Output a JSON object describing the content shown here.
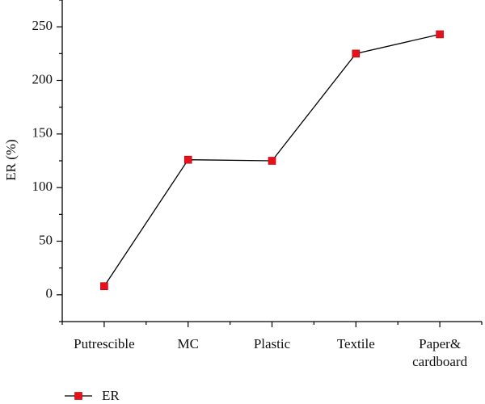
{
  "chart_data": {
    "type": "line",
    "ylabel": "ER (%)",
    "xlabel": "",
    "categories": [
      [
        "Putrescible"
      ],
      [
        "MC"
      ],
      [
        "Plastic"
      ],
      [
        "Textile"
      ],
      [
        "Paper&",
        "cardboard"
      ]
    ],
    "series": [
      {
        "name": "ER",
        "color": "#e8101a",
        "line_color": "#000000",
        "marker": "square",
        "values": [
          8,
          126,
          125,
          225,
          243
        ]
      }
    ],
    "ylim": [
      -25,
      275
    ],
    "yticks": [
      0,
      50,
      100,
      150,
      200,
      250
    ],
    "grid": false,
    "legend_position": "bottom-left"
  }
}
